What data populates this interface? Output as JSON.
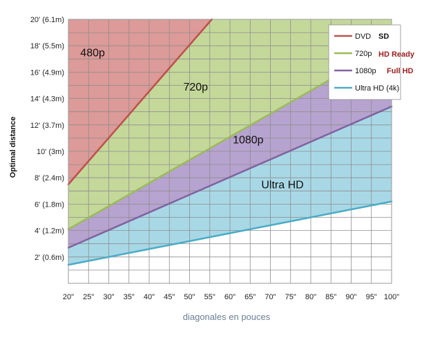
{
  "chart_data": {
    "type": "area",
    "xlabel": "diagonales en pouces",
    "ylabel": "Optimal distance",
    "x_ticks": [
      "20\"",
      "25\"",
      "30\"",
      "35\"",
      "40\"",
      "45\"",
      "50\"",
      "55\"",
      "60\"",
      "65\"",
      "70\"",
      "75\"",
      "80\"",
      "85\"",
      "90\"",
      "95\"",
      "100\""
    ],
    "y_ticks": [
      "2' (0.6m)",
      "4' (1.2m)",
      "6' (1.8m)",
      "8' (2.4m)",
      "10' (3m)",
      "12' (3.7m)",
      "14' (4.3m)",
      "16' (4.9m)",
      "18' (5.5m)",
      "20' (6.1m)"
    ],
    "xlim": [
      20,
      100
    ],
    "ylim": [
      0,
      20
    ],
    "grid": true,
    "legend_position": "top-right",
    "series": [
      {
        "name": "DVD",
        "tag": "SD",
        "color": "#c0504d",
        "fill": "#dc9a98",
        "x": [
          20,
          55.5
        ],
        "y": [
          7.5,
          20
        ]
      },
      {
        "name": "720p",
        "tag": "HD Ready",
        "color": "#9bbb59",
        "fill": "#c4d89a",
        "x": [
          20,
          100
        ],
        "y": [
          4.1,
          18.1
        ]
      },
      {
        "name": "1080p",
        "tag": "Full HD",
        "color": "#8064a2",
        "fill": "#b7a3cf",
        "x": [
          20,
          100
        ],
        "y": [
          2.7,
          13.4
        ]
      },
      {
        "name": "Ultra HD (4k)",
        "tag": "",
        "color": "#4bacc6",
        "fill": "#a8d8e6",
        "x": [
          20,
          100
        ],
        "y": [
          1.4,
          6.2
        ]
      }
    ],
    "region_labels": [
      {
        "text": "480p",
        "x": 26,
        "y": 17.2
      },
      {
        "text": "720p",
        "x": 51.5,
        "y": 14.6
      },
      {
        "text": "1080p",
        "x": 64.5,
        "y": 10.6
      },
      {
        "text": "Ultra HD",
        "x": 73,
        "y": 7.2
      }
    ]
  }
}
